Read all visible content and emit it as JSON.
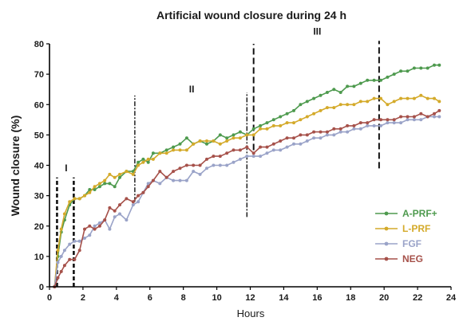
{
  "chart_data": {
    "type": "line",
    "title": "Artificial wound closure during 24 h",
    "xlabel": "Hours",
    "ylabel": "Wound closure (%)",
    "xlim": [
      0,
      24
    ],
    "ylim": [
      0,
      80
    ],
    "xticks": [
      0,
      2,
      4,
      6,
      8,
      10,
      12,
      14,
      16,
      18,
      20,
      22,
      24
    ],
    "yticks": [
      0,
      10,
      20,
      30,
      40,
      50,
      60,
      70,
      80
    ],
    "grid": false,
    "legend_position": "bottom-right",
    "phase_labels": [
      {
        "label": "I",
        "x": 1.0,
        "y": 38
      },
      {
        "label": "II",
        "x": 8.5,
        "y": 64
      },
      {
        "label": "III",
        "x": 16.0,
        "y": 83
      }
    ],
    "phase_lines": [
      {
        "x": 0.45,
        "y0": 0,
        "y1": 36,
        "style": "heavy"
      },
      {
        "x": 1.45,
        "y0": 0,
        "y1": 36,
        "style": "heavy"
      },
      {
        "x": 5.1,
        "y0": 28,
        "y1": 63,
        "style": "dashdot"
      },
      {
        "x": 11.8,
        "y0": 23,
        "y1": 64,
        "style": "dashdot"
      },
      {
        "x": 12.2,
        "y0": 45,
        "y1": 80,
        "style": "dashed"
      },
      {
        "x": 19.7,
        "y0": 39,
        "y1": 81,
        "style": "dashed"
      }
    ],
    "series": [
      {
        "name": "A-PRF+",
        "color": "#4e9a4e",
        "points": [
          [
            0.3,
            0
          ],
          [
            0.5,
            10
          ],
          [
            0.7,
            18
          ],
          [
            0.9,
            22
          ],
          [
            1.2,
            27
          ],
          [
            1.5,
            29
          ],
          [
            1.8,
            29
          ],
          [
            2.1,
            30
          ],
          [
            2.4,
            32
          ],
          [
            2.7,
            32
          ],
          [
            3.0,
            33
          ],
          [
            3.3,
            34
          ],
          [
            3.6,
            34
          ],
          [
            3.9,
            33
          ],
          [
            4.2,
            36
          ],
          [
            4.6,
            38
          ],
          [
            5.0,
            38
          ],
          [
            5.3,
            41
          ],
          [
            5.6,
            42
          ],
          [
            5.9,
            41
          ],
          [
            6.2,
            44
          ],
          [
            6.6,
            44
          ],
          [
            7.0,
            45
          ],
          [
            7.4,
            46
          ],
          [
            7.8,
            47
          ],
          [
            8.2,
            49
          ],
          [
            8.6,
            47
          ],
          [
            9.0,
            48
          ],
          [
            9.4,
            47
          ],
          [
            9.8,
            48
          ],
          [
            10.2,
            50
          ],
          [
            10.6,
            49
          ],
          [
            11.0,
            50
          ],
          [
            11.4,
            51
          ],
          [
            11.8,
            50
          ],
          [
            12.2,
            52
          ],
          [
            12.6,
            53
          ],
          [
            13.0,
            54
          ],
          [
            13.4,
            55
          ],
          [
            13.8,
            56
          ],
          [
            14.2,
            57
          ],
          [
            14.6,
            58
          ],
          [
            15.0,
            60
          ],
          [
            15.4,
            61
          ],
          [
            15.8,
            62
          ],
          [
            16.2,
            63
          ],
          [
            16.6,
            64
          ],
          [
            17.0,
            65
          ],
          [
            17.4,
            64
          ],
          [
            17.8,
            66
          ],
          [
            18.2,
            66
          ],
          [
            18.6,
            67
          ],
          [
            19.0,
            68
          ],
          [
            19.4,
            68
          ],
          [
            19.8,
            68
          ],
          [
            20.2,
            69
          ],
          [
            20.6,
            70
          ],
          [
            21.0,
            71
          ],
          [
            21.4,
            71
          ],
          [
            21.8,
            72
          ],
          [
            22.2,
            72
          ],
          [
            22.6,
            72
          ],
          [
            23.0,
            73
          ],
          [
            23.3,
            73
          ]
        ]
      },
      {
        "name": "L-PRF",
        "color": "#d4aa2a",
        "points": [
          [
            0.3,
            0
          ],
          [
            0.5,
            12
          ],
          [
            0.7,
            19
          ],
          [
            0.9,
            24
          ],
          [
            1.2,
            28
          ],
          [
            1.5,
            29
          ],
          [
            1.8,
            29
          ],
          [
            2.1,
            30
          ],
          [
            2.4,
            31
          ],
          [
            2.7,
            33
          ],
          [
            3.0,
            34
          ],
          [
            3.3,
            35
          ],
          [
            3.6,
            37
          ],
          [
            3.9,
            36
          ],
          [
            4.2,
            37
          ],
          [
            4.6,
            38
          ],
          [
            5.0,
            37
          ],
          [
            5.3,
            40
          ],
          [
            5.6,
            41
          ],
          [
            5.9,
            42
          ],
          [
            6.2,
            42
          ],
          [
            6.6,
            44
          ],
          [
            7.0,
            44
          ],
          [
            7.4,
            45
          ],
          [
            7.8,
            45
          ],
          [
            8.2,
            45
          ],
          [
            8.6,
            47
          ],
          [
            9.0,
            48
          ],
          [
            9.4,
            48
          ],
          [
            9.8,
            48
          ],
          [
            10.2,
            47
          ],
          [
            10.6,
            48
          ],
          [
            11.0,
            49
          ],
          [
            11.4,
            49
          ],
          [
            11.8,
            50
          ],
          [
            12.2,
            50
          ],
          [
            12.6,
            52
          ],
          [
            13.0,
            52
          ],
          [
            13.4,
            53
          ],
          [
            13.8,
            53
          ],
          [
            14.2,
            54
          ],
          [
            14.6,
            54
          ],
          [
            15.0,
            55
          ],
          [
            15.4,
            56
          ],
          [
            15.8,
            57
          ],
          [
            16.2,
            58
          ],
          [
            16.6,
            59
          ],
          [
            17.0,
            59
          ],
          [
            17.4,
            60
          ],
          [
            17.8,
            60
          ],
          [
            18.2,
            60
          ],
          [
            18.6,
            61
          ],
          [
            19.0,
            61
          ],
          [
            19.4,
            62
          ],
          [
            19.8,
            62
          ],
          [
            20.2,
            60
          ],
          [
            20.6,
            61
          ],
          [
            21.0,
            62
          ],
          [
            21.4,
            62
          ],
          [
            21.8,
            62
          ],
          [
            22.2,
            63
          ],
          [
            22.6,
            62
          ],
          [
            23.0,
            62
          ],
          [
            23.3,
            61
          ]
        ]
      },
      {
        "name": "FGF",
        "color": "#9aa3c8",
        "points": [
          [
            0.3,
            0
          ],
          [
            0.5,
            8
          ],
          [
            0.7,
            10
          ],
          [
            0.9,
            12
          ],
          [
            1.2,
            14
          ],
          [
            1.5,
            15
          ],
          [
            1.8,
            15
          ],
          [
            2.1,
            16
          ],
          [
            2.4,
            17
          ],
          [
            2.7,
            20
          ],
          [
            3.0,
            21
          ],
          [
            3.3,
            22
          ],
          [
            3.6,
            19
          ],
          [
            3.9,
            23
          ],
          [
            4.2,
            24
          ],
          [
            4.6,
            22
          ],
          [
            5.0,
            27
          ],
          [
            5.3,
            28
          ],
          [
            5.6,
            31
          ],
          [
            5.9,
            34
          ],
          [
            6.2,
            35
          ],
          [
            6.6,
            34
          ],
          [
            7.0,
            36
          ],
          [
            7.4,
            35
          ],
          [
            7.8,
            35
          ],
          [
            8.2,
            35
          ],
          [
            8.6,
            38
          ],
          [
            9.0,
            37
          ],
          [
            9.4,
            39
          ],
          [
            9.8,
            40
          ],
          [
            10.2,
            40
          ],
          [
            10.6,
            40
          ],
          [
            11.0,
            41
          ],
          [
            11.4,
            42
          ],
          [
            11.8,
            43
          ],
          [
            12.2,
            43
          ],
          [
            12.6,
            43
          ],
          [
            13.0,
            44
          ],
          [
            13.4,
            45
          ],
          [
            13.8,
            45
          ],
          [
            14.2,
            46
          ],
          [
            14.6,
            47
          ],
          [
            15.0,
            47
          ],
          [
            15.4,
            48
          ],
          [
            15.8,
            49
          ],
          [
            16.2,
            49
          ],
          [
            16.6,
            50
          ],
          [
            17.0,
            50
          ],
          [
            17.4,
            51
          ],
          [
            17.8,
            51
          ],
          [
            18.2,
            52
          ],
          [
            18.6,
            52
          ],
          [
            19.0,
            53
          ],
          [
            19.4,
            53
          ],
          [
            19.8,
            53
          ],
          [
            20.2,
            54
          ],
          [
            20.6,
            54
          ],
          [
            21.0,
            54
          ],
          [
            21.4,
            55
          ],
          [
            21.8,
            55
          ],
          [
            22.2,
            55
          ],
          [
            22.6,
            56
          ],
          [
            23.0,
            56
          ],
          [
            23.3,
            56
          ]
        ]
      },
      {
        "name": "NEG",
        "color": "#a6514a",
        "points": [
          [
            0.3,
            0
          ],
          [
            0.5,
            3
          ],
          [
            0.7,
            5
          ],
          [
            0.9,
            7
          ],
          [
            1.2,
            9
          ],
          [
            1.5,
            9
          ],
          [
            1.8,
            12
          ],
          [
            2.1,
            19
          ],
          [
            2.4,
            20
          ],
          [
            2.7,
            19
          ],
          [
            3.0,
            20
          ],
          [
            3.3,
            22
          ],
          [
            3.6,
            26
          ],
          [
            3.9,
            25
          ],
          [
            4.2,
            27
          ],
          [
            4.6,
            29
          ],
          [
            5.0,
            28
          ],
          [
            5.3,
            30
          ],
          [
            5.6,
            31
          ],
          [
            5.9,
            33
          ],
          [
            6.2,
            35
          ],
          [
            6.6,
            38
          ],
          [
            7.0,
            36
          ],
          [
            7.4,
            38
          ],
          [
            7.8,
            39
          ],
          [
            8.2,
            40
          ],
          [
            8.6,
            40
          ],
          [
            9.0,
            40
          ],
          [
            9.4,
            42
          ],
          [
            9.8,
            43
          ],
          [
            10.2,
            43
          ],
          [
            10.6,
            44
          ],
          [
            11.0,
            45
          ],
          [
            11.4,
            45
          ],
          [
            11.8,
            46
          ],
          [
            12.2,
            44
          ],
          [
            12.6,
            46
          ],
          [
            13.0,
            46
          ],
          [
            13.4,
            47
          ],
          [
            13.8,
            48
          ],
          [
            14.2,
            49
          ],
          [
            14.6,
            49
          ],
          [
            15.0,
            50
          ],
          [
            15.4,
            50
          ],
          [
            15.8,
            51
          ],
          [
            16.2,
            51
          ],
          [
            16.6,
            51
          ],
          [
            17.0,
            52
          ],
          [
            17.4,
            52
          ],
          [
            17.8,
            53
          ],
          [
            18.2,
            53
          ],
          [
            18.6,
            54
          ],
          [
            19.0,
            54
          ],
          [
            19.4,
            55
          ],
          [
            19.8,
            55
          ],
          [
            20.2,
            55
          ],
          [
            20.6,
            55
          ],
          [
            21.0,
            56
          ],
          [
            21.4,
            56
          ],
          [
            21.8,
            56
          ],
          [
            22.2,
            57
          ],
          [
            22.6,
            56
          ],
          [
            23.0,
            57
          ],
          [
            23.3,
            58
          ]
        ]
      }
    ]
  }
}
